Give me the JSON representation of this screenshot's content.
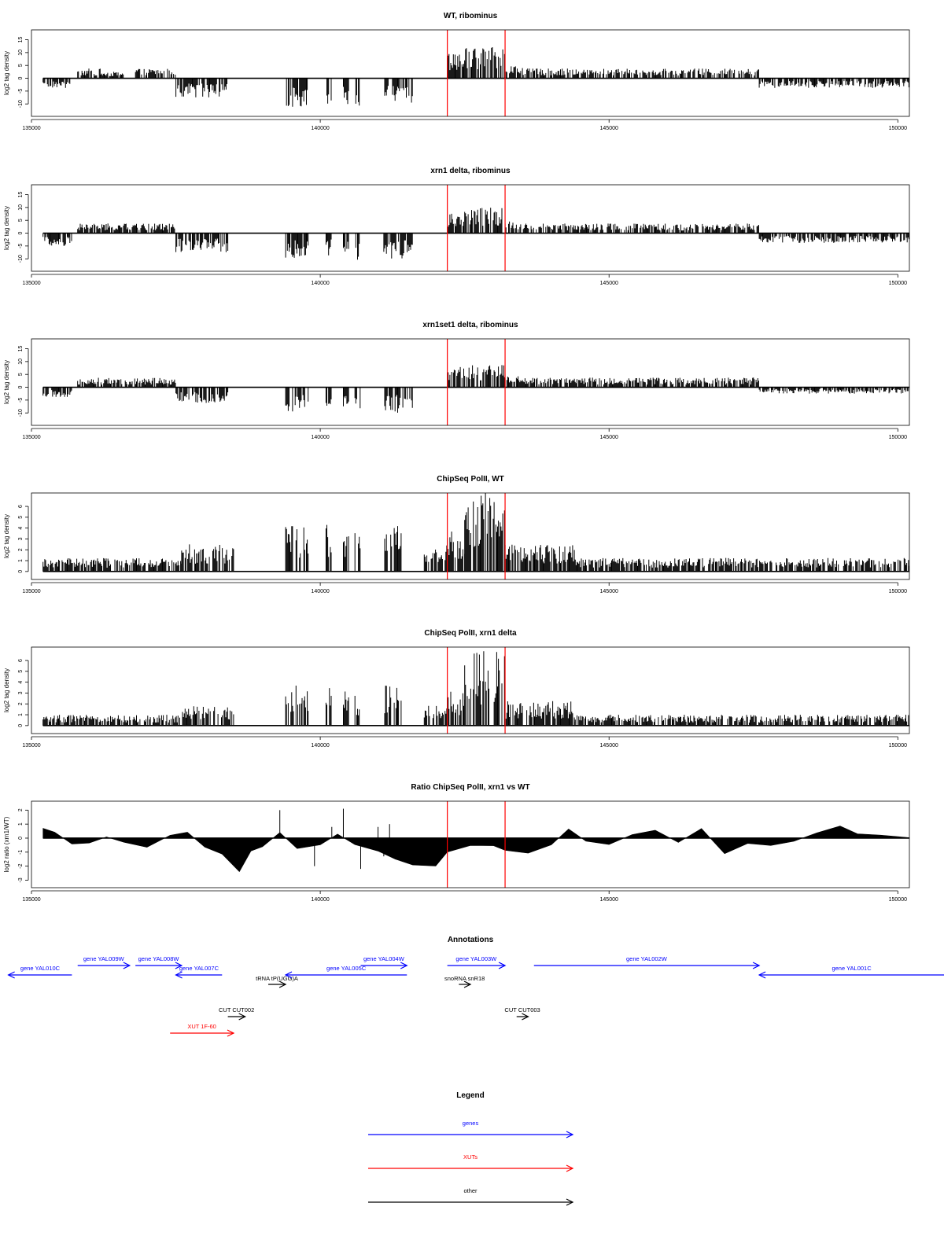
{
  "panels": [
    {
      "title": "WT, ribominus",
      "ylabel": "log2 tag density"
    },
    {
      "title": "xrn1 delta, ribominus",
      "ylabel": "log2 tag density"
    },
    {
      "title": "xrn1set1 delta, ribominus",
      "ylabel": "log2 tag density"
    },
    {
      "title": "ChipSeq PolII, WT",
      "ylabel": "log2 tag density"
    },
    {
      "title": "ChipSeq PolII, xrn1 delta",
      "ylabel": "log2 tag density"
    },
    {
      "title": "Ratio ChipSeq PolII, xrn1 vs WT",
      "ylabel": "log2 ratio (xrn1/WT)"
    }
  ],
  "annotations_title": "Annotations",
  "legend_title": "Legend",
  "colors": {
    "gene": "#0000ff",
    "xut": "#ff0000",
    "other": "#000000",
    "marker": "#ff0000",
    "signal": "#000000"
  },
  "chart_data": [
    {
      "type": "bar",
      "title": "WT, ribominus",
      "xlabel": "",
      "ylabel": "log2 tag density",
      "xlim": [
        135000,
        150200
      ],
      "ylim": [
        -13,
        17
      ],
      "yticks": [
        -10,
        -5,
        0,
        5,
        10,
        15
      ],
      "xticks": [
        135000,
        140000,
        145000,
        150000
      ],
      "markers": [
        142200,
        143200
      ],
      "segments": [
        {
          "x": [
            135200,
            135700
          ],
          "y": -3
        },
        {
          "x": [
            135800,
            136200
          ],
          "y": 3
        },
        {
          "x": [
            136200,
            136600
          ],
          "y": 2
        },
        {
          "x": [
            136800,
            137500
          ],
          "y": 3
        },
        {
          "x": [
            137500,
            138400
          ],
          "y": -6
        },
        {
          "x": [
            139400,
            139800
          ],
          "y": -9
        },
        {
          "x": [
            140100,
            140200
          ],
          "y": -8
        },
        {
          "x": [
            140400,
            140500
          ],
          "y": -8
        },
        {
          "x": [
            140600,
            140700
          ],
          "y": -10
        },
        {
          "x": [
            141100,
            141600
          ],
          "y": -8
        },
        {
          "x": [
            142200,
            142500
          ],
          "y": 9
        },
        {
          "x": [
            142500,
            143200
          ],
          "y": 10
        },
        {
          "x": [
            143200,
            143500
          ],
          "y": 4
        },
        {
          "x": [
            143500,
            147600
          ],
          "y": 3
        },
        {
          "x": [
            147600,
            150200
          ],
          "y": -3
        }
      ]
    },
    {
      "type": "bar",
      "title": "xrn1 delta, ribominus",
      "xlabel": "",
      "ylabel": "log2 tag density",
      "xlim": [
        135000,
        150200
      ],
      "ylim": [
        -13,
        17
      ],
      "yticks": [
        -10,
        -5,
        0,
        5,
        10,
        15
      ],
      "xticks": [
        135000,
        140000,
        145000,
        150000
      ],
      "markers": [
        142200,
        143200
      ],
      "segments": [
        {
          "x": [
            135200,
            135700
          ],
          "y": -4
        },
        {
          "x": [
            135800,
            137500
          ],
          "y": 3
        },
        {
          "x": [
            137500,
            138400
          ],
          "y": -6
        },
        {
          "x": [
            139400,
            139800
          ],
          "y": -8
        },
        {
          "x": [
            140100,
            140200
          ],
          "y": -7
        },
        {
          "x": [
            140400,
            140500
          ],
          "y": -7
        },
        {
          "x": [
            140600,
            140700
          ],
          "y": -9
        },
        {
          "x": [
            141100,
            141600
          ],
          "y": -8
        },
        {
          "x": [
            142200,
            142500
          ],
          "y": 7
        },
        {
          "x": [
            142500,
            143200
          ],
          "y": 8
        },
        {
          "x": [
            143200,
            143500
          ],
          "y": 4
        },
        {
          "x": [
            143500,
            147600
          ],
          "y": 3
        },
        {
          "x": [
            147600,
            150200
          ],
          "y": -3
        }
      ]
    },
    {
      "type": "bar",
      "title": "xrn1set1 delta, ribominus",
      "xlabel": "",
      "ylabel": "log2 tag density",
      "xlim": [
        135000,
        150200
      ],
      "ylim": [
        -13,
        17
      ],
      "yticks": [
        -10,
        -5,
        0,
        5,
        10,
        15
      ],
      "xticks": [
        135000,
        140000,
        145000,
        150000
      ],
      "markers": [
        142200,
        143200
      ],
      "segments": [
        {
          "x": [
            135200,
            135700
          ],
          "y": -3
        },
        {
          "x": [
            135800,
            137500
          ],
          "y": 3
        },
        {
          "x": [
            137500,
            138400
          ],
          "y": -5
        },
        {
          "x": [
            139400,
            139800
          ],
          "y": -8
        },
        {
          "x": [
            140100,
            140200
          ],
          "y": -6
        },
        {
          "x": [
            140400,
            140500
          ],
          "y": -6
        },
        {
          "x": [
            140600,
            140700
          ],
          "y": -8
        },
        {
          "x": [
            141100,
            141600
          ],
          "y": -8
        },
        {
          "x": [
            142200,
            142500
          ],
          "y": 7
        },
        {
          "x": [
            142500,
            143200
          ],
          "y": 7
        },
        {
          "x": [
            143200,
            143500
          ],
          "y": 4
        },
        {
          "x": [
            143500,
            147600
          ],
          "y": 3
        },
        {
          "x": [
            147600,
            150200
          ],
          "y": -2
        }
      ]
    },
    {
      "type": "bar",
      "title": "ChipSeq PolII, WT",
      "xlabel": "",
      "ylabel": "log2 tag density",
      "xlim": [
        135000,
        150200
      ],
      "ylim": [
        -0.3,
        6.8
      ],
      "yticks": [
        0,
        1,
        2,
        3,
        4,
        5,
        6
      ],
      "xticks": [
        135000,
        140000,
        145000,
        150000
      ],
      "markers": [
        142200,
        143200
      ],
      "segments": [
        {
          "x": [
            135200,
            137600
          ],
          "y": 1
        },
        {
          "x": [
            137600,
            138500
          ],
          "y": 2
        },
        {
          "x": [
            139400,
            139800
          ],
          "y": 3.5
        },
        {
          "x": [
            140100,
            140200
          ],
          "y": 3.5
        },
        {
          "x": [
            140400,
            140500
          ],
          "y": 3
        },
        {
          "x": [
            140600,
            140700
          ],
          "y": 3
        },
        {
          "x": [
            141100,
            141400
          ],
          "y": 3.5
        },
        {
          "x": [
            141800,
            142200
          ],
          "y": 2
        },
        {
          "x": [
            142200,
            142500
          ],
          "y": 3
        },
        {
          "x": [
            142500,
            143200
          ],
          "y": 6
        },
        {
          "x": [
            143200,
            144400
          ],
          "y": 2
        },
        {
          "x": [
            144400,
            150200
          ],
          "y": 1
        }
      ]
    },
    {
      "type": "bar",
      "title": "ChipSeq PolII, xrn1 delta",
      "xlabel": "",
      "ylabel": "log2 tag density",
      "xlim": [
        135000,
        150200
      ],
      "ylim": [
        -0.3,
        6.8
      ],
      "yticks": [
        0,
        1,
        2,
        3,
        4,
        5,
        6
      ],
      "xticks": [
        135000,
        140000,
        145000,
        150000
      ],
      "markers": [
        142200,
        143200
      ],
      "segments": [
        {
          "x": [
            135200,
            137600
          ],
          "y": 0.8
        },
        {
          "x": [
            137600,
            138500
          ],
          "y": 1.5
        },
        {
          "x": [
            139400,
            139800
          ],
          "y": 3
        },
        {
          "x": [
            140100,
            140200
          ],
          "y": 2.8
        },
        {
          "x": [
            140400,
            140500
          ],
          "y": 2.6
        },
        {
          "x": [
            140600,
            140700
          ],
          "y": 2.6
        },
        {
          "x": [
            141100,
            141400
          ],
          "y": 3
        },
        {
          "x": [
            141800,
            142200
          ],
          "y": 1.5
        },
        {
          "x": [
            142200,
            142500
          ],
          "y": 2.5
        },
        {
          "x": [
            142500,
            143200
          ],
          "y": 5.5
        },
        {
          "x": [
            143200,
            144400
          ],
          "y": 1.8
        },
        {
          "x": [
            144400,
            150200
          ],
          "y": 0.8
        }
      ]
    },
    {
      "type": "area",
      "title": "Ratio ChipSeq PolII, xrn1 vs WT",
      "xlabel": "",
      "ylabel": "log2 ratio (xrn1/WT)",
      "xlim": [
        135000,
        150200
      ],
      "ylim": [
        -3.2,
        2.3
      ],
      "yticks": [
        -3,
        -2,
        -1,
        0,
        1,
        2
      ],
      "xticks": [
        135000,
        140000,
        145000,
        150000
      ],
      "markers": [
        142200,
        143200
      ],
      "x": [
        135200,
        135400,
        135700,
        136000,
        136300,
        136600,
        137000,
        137400,
        137700,
        138000,
        138300,
        138600,
        138800,
        139000,
        139300,
        139600,
        140000,
        140300,
        140600,
        141000,
        141300,
        141600,
        142000,
        142200,
        142600,
        143000,
        143200,
        143600,
        144000,
        144300,
        144600,
        145000,
        145400,
        145800,
        146200,
        146600,
        147000,
        147400,
        147800,
        148200,
        148600,
        149000,
        149300,
        149700,
        150200
      ],
      "y": [
        0.6,
        0.5,
        -0.5,
        -0.3,
        0.2,
        -0.4,
        -0.6,
        0.2,
        0.3,
        -0.6,
        -1.2,
        -2.5,
        -1.0,
        -0.5,
        0.4,
        -0.8,
        -0.6,
        0.3,
        -0.5,
        -0.8,
        -1.5,
        -1.8,
        -2.0,
        -1.0,
        -0.6,
        -0.6,
        -0.8,
        -1.0,
        -0.5,
        0.7,
        -0.2,
        -0.5,
        0.3,
        0.5,
        -0.2,
        0.6,
        -1.0,
        -0.3,
        -0.5,
        -0.2,
        0.4,
        0.9,
        0.3,
        0.2,
        0.1
      ],
      "spikes": [
        {
          "x": 139300,
          "y": 2.0
        },
        {
          "x": 139900,
          "y": -2.0
        },
        {
          "x": 140200,
          "y": 0.8
        },
        {
          "x": 140400,
          "y": 2.1
        },
        {
          "x": 140700,
          "y": -2.2
        },
        {
          "x": 141000,
          "y": 0.8
        },
        {
          "x": 141100,
          "y": -1.3
        },
        {
          "x": 141200,
          "y": 1.0
        }
      ]
    }
  ],
  "annotations": {
    "xlim": [
      135000,
      150200
    ],
    "features": [
      {
        "label": "gene YAL010C",
        "kind": "gene",
        "dir": "left",
        "x": [
          134600,
          135700
        ],
        "row": 1
      },
      {
        "label": "gene YAL009W",
        "kind": "gene",
        "dir": "right",
        "x": [
          135800,
          136700
        ],
        "row": 0
      },
      {
        "label": "gene YAL008W",
        "kind": "gene",
        "dir": "right",
        "x": [
          136800,
          137600
        ],
        "row": 0
      },
      {
        "label": "gene YAL007C",
        "kind": "gene",
        "dir": "left",
        "x": [
          137500,
          138300
        ],
        "row": 1
      },
      {
        "label": "tRNA tP(UGG)A",
        "kind": "other",
        "dir": "right",
        "x": [
          139100,
          139400
        ],
        "row": 2
      },
      {
        "label": "gene YAL005C",
        "kind": "gene",
        "dir": "left",
        "x": [
          139400,
          141500
        ],
        "row": 1
      },
      {
        "label": "gene YAL004W",
        "kind": "gene",
        "dir": "right",
        "x": [
          140700,
          141500
        ],
        "row": 0
      },
      {
        "label": "gene YAL003W",
        "kind": "gene",
        "dir": "right",
        "x": [
          142200,
          143200
        ],
        "row": 0
      },
      {
        "label": "snoRNA snR18",
        "kind": "other",
        "dir": "right",
        "x": [
          142400,
          142600
        ],
        "row": 2
      },
      {
        "label": "gene YAL002W",
        "kind": "gene",
        "dir": "right",
        "x": [
          143700,
          147600
        ],
        "row": 0
      },
      {
        "label": "gene YAL001C",
        "kind": "gene",
        "dir": "left",
        "x": [
          147600,
          150900
        ],
        "row": 1
      },
      {
        "label": "CUT CUT002",
        "kind": "other",
        "dir": "right",
        "x": [
          138400,
          138700
        ],
        "row": 3
      },
      {
        "label": "CUT CUT003",
        "kind": "other",
        "dir": "right",
        "x": [
          143400,
          143600
        ],
        "row": 3
      },
      {
        "label": "XUT 1F-60",
        "kind": "xut",
        "dir": "right",
        "x": [
          137400,
          138500
        ],
        "row": 4
      }
    ]
  },
  "legend": [
    {
      "label": "genes",
      "kind": "gene"
    },
    {
      "label": "XUTs",
      "kind": "xut"
    },
    {
      "label": "other",
      "kind": "other"
    }
  ]
}
